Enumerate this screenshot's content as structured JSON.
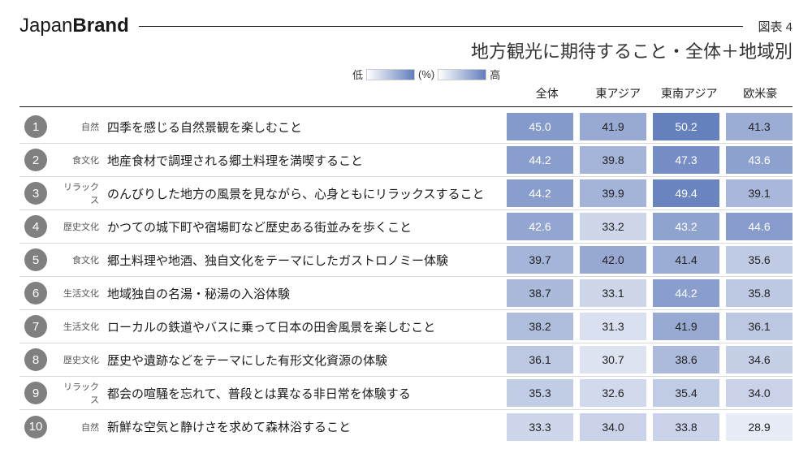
{
  "logo": {
    "part1": "Japan",
    "part2": "Brand"
  },
  "chart_no": "図表 4",
  "title": "地方観光に期待すること・全体＋地域別",
  "legend": {
    "low": "低",
    "unit": "(%)",
    "high": "高"
  },
  "columns": [
    "全体",
    "東アジア",
    "東南アジア",
    "欧米豪"
  ],
  "heatmap": {
    "min_v": 28.0,
    "max_v": 50.5,
    "light_rgb": [
      238,
      241,
      248
    ],
    "dark_rgb": [
      98,
      126,
      188
    ],
    "threshold_white_text": 42.5
  },
  "rows": [
    {
      "rank": "1",
      "cat": "自然",
      "label": "四季を感じる自然景観を楽しむこと",
      "v": [
        45.0,
        41.9,
        50.2,
        41.3
      ]
    },
    {
      "rank": "2",
      "cat": "食文化",
      "label": "地産食材で調理される郷土料理を満喫すること",
      "v": [
        44.2,
        39.8,
        47.3,
        43.6
      ]
    },
    {
      "rank": "3",
      "cat": "リラックス",
      "label": "のんびりした地方の風景を見ながら、心身ともにリラックスすること",
      "v": [
        44.2,
        39.9,
        49.4,
        39.1
      ]
    },
    {
      "rank": "4",
      "cat": "歴史文化",
      "label": "かつての城下町や宿場町など歴史ある街並みを歩くこと",
      "v": [
        42.6,
        33.2,
        43.2,
        44.6
      ]
    },
    {
      "rank": "5",
      "cat": "食文化",
      "label": "郷土料理や地酒、独自文化をテーマにしたガストロノミー体験",
      "v": [
        39.7,
        42.0,
        41.4,
        35.6
      ]
    },
    {
      "rank": "6",
      "cat": "生活文化",
      "label": "地域独自の名湯・秘湯の入浴体験",
      "v": [
        38.7,
        33.1,
        44.2,
        35.8
      ]
    },
    {
      "rank": "7",
      "cat": "生活文化",
      "label": "ローカルの鉄道やバスに乗って日本の田舎風景を楽しむこと",
      "v": [
        38.2,
        31.3,
        41.9,
        36.1
      ]
    },
    {
      "rank": "8",
      "cat": "歴史文化",
      "label": "歴史や遺跡などをテーマにした有形文化資源の体験",
      "v": [
        36.1,
        30.7,
        38.6,
        34.6
      ]
    },
    {
      "rank": "9",
      "cat": "リラックス",
      "label": "都会の喧騒を忘れて、普段とは異なる非日常を体験する",
      "v": [
        35.3,
        32.6,
        35.4,
        34.0
      ]
    },
    {
      "rank": "10",
      "cat": "自然",
      "label": "新鮮な空気と静けさを求めて森林浴すること",
      "v": [
        33.3,
        34.0,
        33.8,
        28.9
      ]
    }
  ]
}
